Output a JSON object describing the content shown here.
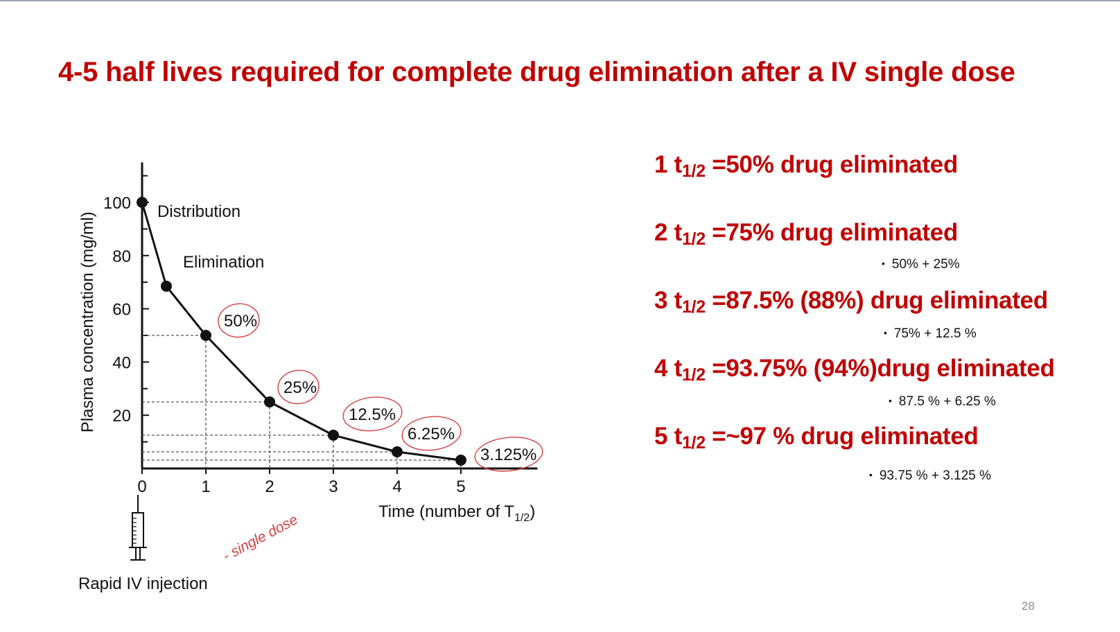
{
  "slide": {
    "title": "4-5 half lives required for complete drug elimination after a IV single dose",
    "page_number": "28",
    "accent_color": "#c00000",
    "statements": [
      {
        "prefix": "1 t",
        "sub": "1/2",
        "suffix": " =50% drug eliminated",
        "detail": ""
      },
      {
        "prefix": "2 t",
        "sub": "1/2",
        "suffix": " =75% drug eliminated",
        "detail": "50% + 25%"
      },
      {
        "prefix": "3 t",
        "sub": "1/2",
        "suffix": " =87.5% (88%) drug eliminated",
        "detail": "75% + 12.5 %"
      },
      {
        "prefix": "4 t",
        "sub": "1/2",
        "suffix": " =93.75% (94%)drug eliminated",
        "detail": "87.5 % + 6.25 %"
      },
      {
        "prefix": "5 t",
        "sub": "1/2",
        "suffix": " =~97 % drug eliminated",
        "detail": "93.75 % + 3.125 %"
      }
    ]
  },
  "chart_data": {
    "type": "line",
    "title": "",
    "ylabel": "Plasma concentration (mg/ml)",
    "xlabel": "Time (number of T",
    "xlabel_sub": "1/2",
    "xlabel_tail": ")",
    "x_ticks": [
      "0",
      "1",
      "2",
      "3",
      "4",
      "5"
    ],
    "y_ticks": [
      "20",
      "40",
      "60",
      "80",
      "100"
    ],
    "xlim": [
      0,
      6.2
    ],
    "ylim": [
      0,
      115
    ],
    "grid": false,
    "points": [
      {
        "x": 0,
        "y": 100
      },
      {
        "x": 0.38,
        "y": 68.5
      },
      {
        "x": 1,
        "y": 50
      },
      {
        "x": 2,
        "y": 25
      },
      {
        "x": 3,
        "y": 12.5
      },
      {
        "x": 4,
        "y": 6.25
      },
      {
        "x": 5,
        "y": 3.125
      }
    ],
    "percent_labels": [
      {
        "x": 1,
        "text": "50%"
      },
      {
        "x": 2,
        "text": "25%"
      },
      {
        "x": 3,
        "text": "12.5%"
      },
      {
        "x": 4,
        "text": "6.25%"
      },
      {
        "x": 5,
        "text": "3.125%"
      }
    ],
    "annotations": {
      "distribution": "Distribution",
      "elimination": "Elimination",
      "injection": "Rapid IV injection",
      "handwritten": "- single dose"
    },
    "ink_color": "#111111",
    "handwriting_color": "#d64040"
  }
}
